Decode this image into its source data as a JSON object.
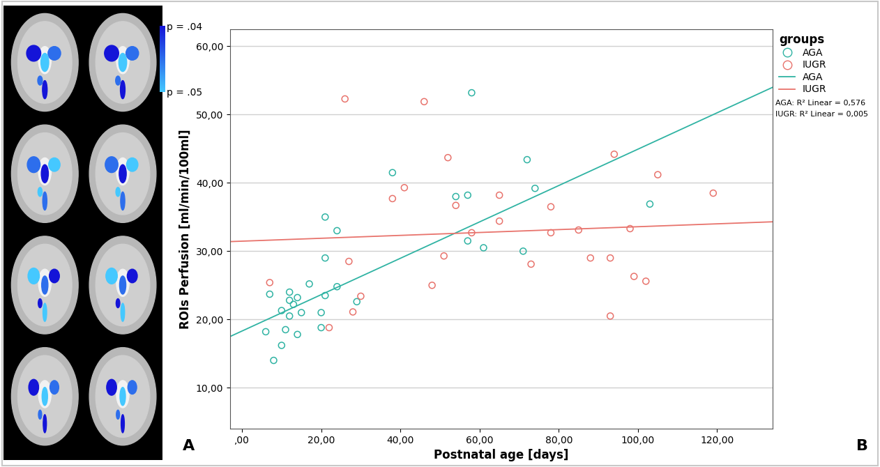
{
  "chart_data": {
    "type": "scatter",
    "x_label": "Postnatal age [days]",
    "y_label": "ROIs Perfusion [ml/min/100ml]",
    "xlim": [
      -3,
      134
    ],
    "ylim": [
      4,
      62.5
    ],
    "xticks": [
      {
        "value": 0,
        "label": ",00"
      },
      {
        "value": 20,
        "label": "20,00"
      },
      {
        "value": 40,
        "label": "40,00"
      },
      {
        "value": 60,
        "label": "60,00"
      },
      {
        "value": 80,
        "label": "80,00"
      },
      {
        "value": 100,
        "label": "100,00"
      },
      {
        "value": 120,
        "label": "120,00"
      }
    ],
    "yticks": [
      {
        "value": 10,
        "label": "10,00"
      },
      {
        "value": 20,
        "label": "20,00"
      },
      {
        "value": 30,
        "label": "30,00"
      },
      {
        "value": 40,
        "label": "40,00"
      },
      {
        "value": 50,
        "label": "50,00"
      },
      {
        "value": 60,
        "label": "60,00"
      }
    ],
    "grid": "y",
    "legend": "upper left",
    "legend_title": "groups",
    "series": [
      {
        "name": "AGA",
        "type": "scatter",
        "color": "#2fb3a3",
        "marker": "o",
        "x": [
          6,
          7,
          8,
          10,
          10,
          11,
          12,
          12,
          12,
          13,
          14,
          14,
          15,
          17,
          20,
          20,
          21,
          21,
          21,
          24,
          24,
          29,
          38,
          54,
          57,
          57,
          58,
          61,
          71,
          72,
          74,
          103
        ],
        "values": [
          18.2,
          23.7,
          14,
          16.2,
          21.3,
          18.5,
          20.5,
          22.8,
          24,
          22.2,
          23.2,
          17.8,
          21,
          25.2,
          18.8,
          21,
          23.5,
          29,
          35,
          33,
          24.8,
          22.6,
          41.5,
          38,
          38.2,
          31.5,
          53.2,
          30.5,
          30,
          43.4,
          39.2,
          36.9
        ]
      },
      {
        "name": "IUGR",
        "type": "scatter",
        "color": "#e8736c",
        "marker": "o",
        "x": [
          7,
          22,
          26,
          27,
          28,
          30,
          38,
          41,
          46,
          48,
          51,
          52,
          54,
          58,
          65,
          65,
          73,
          78,
          78,
          85,
          88,
          93,
          93,
          94,
          98,
          99,
          102,
          105,
          119
        ],
        "values": [
          25.4,
          18.8,
          52.3,
          28.5,
          21.1,
          23.4,
          37.7,
          39.3,
          51.9,
          25,
          29.3,
          43.7,
          36.7,
          32.7,
          38.2,
          34.4,
          28.1,
          36.5,
          32.7,
          33.1,
          29,
          29,
          20.5,
          44.2,
          33.3,
          26.3,
          25.6,
          41.2,
          38.5
        ]
      },
      {
        "name": "AGA",
        "type": "line",
        "color": "#2fb3a3",
        "line_style": "solid",
        "x": [
          -3,
          134
        ],
        "values": [
          17.5,
          54
        ]
      },
      {
        "name": "IUGR",
        "type": "line",
        "color": "#e8736c",
        "line_style": "solid",
        "x": [
          -3,
          134
        ],
        "values": [
          31.4,
          34.3
        ]
      }
    ],
    "annotations": [
      "AGA: R² Linear = 0,576",
      "IUGR: R² Linear = 0,005"
    ],
    "panel_labels": [
      "A",
      "B"
    ],
    "colorbar": {
      "range": [
        0.04,
        0.05
      ],
      "ticks": [
        {
          "value": 0.04,
          "label": "p = .04"
        },
        {
          "value": 0.05,
          "label": "p = .05"
        }
      ],
      "colors": [
        "#1414d8",
        "#45c8ff"
      ]
    }
  }
}
